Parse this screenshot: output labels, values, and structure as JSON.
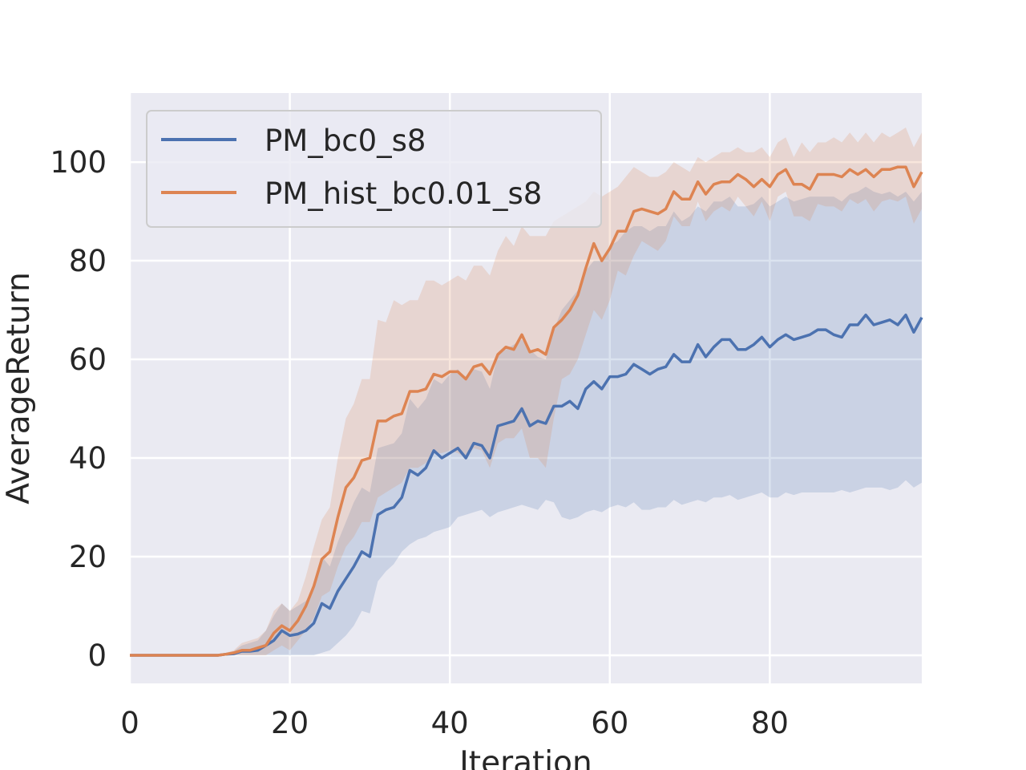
{
  "chart_data": {
    "type": "line",
    "title": "",
    "xlabel": "Iteration",
    "ylabel": "AverageReturn",
    "xlim": [
      0,
      99
    ],
    "ylim": [
      -5.7,
      114
    ],
    "xticks": [
      0,
      20,
      40,
      60,
      80
    ],
    "yticks": [
      0,
      20,
      40,
      60,
      80,
      100
    ],
    "grid": true,
    "legend_position": "top-left",
    "background_color": "#eaeaf2",
    "grid_color": "#ffffff",
    "series": [
      {
        "name": "PM_bc0_s8",
        "color": "#4c72b0",
        "x": [
          0,
          1,
          2,
          3,
          4,
          5,
          6,
          7,
          8,
          9,
          10,
          11,
          12,
          13,
          14,
          15,
          16,
          17,
          18,
          19,
          20,
          21,
          22,
          23,
          24,
          25,
          26,
          27,
          28,
          29,
          30,
          31,
          32,
          33,
          34,
          35,
          36,
          37,
          38,
          39,
          40,
          41,
          42,
          43,
          44,
          45,
          46,
          47,
          48,
          49,
          50,
          51,
          52,
          53,
          54,
          55,
          56,
          57,
          58,
          59,
          60,
          61,
          62,
          63,
          64,
          65,
          66,
          67,
          68,
          69,
          70,
          71,
          72,
          73,
          74,
          75,
          76,
          77,
          78,
          79,
          80,
          81,
          82,
          83,
          84,
          85,
          86,
          87,
          88,
          89,
          90,
          91,
          92,
          93,
          94,
          95,
          96,
          97,
          98,
          99
        ],
        "y": [
          0,
          0,
          0,
          0,
          0,
          0,
          0,
          0,
          0,
          0,
          0,
          0,
          0.2,
          0.3,
          0.8,
          0.8,
          1,
          2,
          3,
          5,
          4,
          4.3,
          5,
          6.5,
          10.5,
          9.5,
          13,
          15.5,
          18,
          21,
          20,
          28.5,
          29.5,
          30,
          32,
          37.5,
          36.5,
          38,
          41.5,
          40,
          41,
          42,
          40,
          43,
          42.5,
          40,
          46.5,
          47,
          47.5,
          50,
          46.5,
          47.5,
          47,
          50.5,
          50.5,
          51.5,
          50,
          54,
          55.5,
          54,
          56.5,
          56.5,
          57,
          59,
          58,
          57,
          58,
          58.5,
          61,
          59.5,
          59.5,
          63,
          60.5,
          62.5,
          64,
          64,
          62,
          62,
          63,
          64.5,
          62.5,
          64,
          65,
          64,
          64.5,
          65,
          66,
          66,
          65,
          64.5,
          67,
          67,
          69,
          67,
          67.5,
          68,
          67,
          69,
          65.5,
          68.5
        ],
        "lower": [
          0,
          0,
          0,
          0,
          0,
          0,
          0,
          0,
          0,
          0,
          0,
          0,
          0,
          0,
          0,
          0,
          0,
          0,
          0,
          0,
          0,
          0,
          0,
          0,
          0.5,
          1,
          2.5,
          4,
          6,
          9,
          8.5,
          15,
          17,
          18.5,
          21,
          22.5,
          23.5,
          24,
          25,
          25.5,
          26,
          28,
          28.5,
          29,
          29.5,
          28,
          29,
          29.5,
          30,
          30.5,
          30,
          29.5,
          31.5,
          31,
          28,
          27.5,
          28,
          29,
          29.5,
          29,
          30,
          30.5,
          30,
          31,
          29.5,
          29.5,
          30,
          30,
          31.5,
          30.5,
          31,
          31.5,
          31,
          32,
          32,
          32.5,
          31.5,
          32,
          32.5,
          33,
          32,
          32,
          33,
          32.5,
          33,
          33,
          33,
          33,
          33,
          33.5,
          33,
          33.5,
          34,
          34,
          34,
          33.5,
          34,
          35.5,
          34,
          35
        ],
        "upper": [
          0,
          0,
          0,
          0,
          0,
          0,
          0,
          0,
          0,
          0,
          0,
          0,
          0.5,
          0.8,
          2,
          2.5,
          3,
          5,
          8,
          10.5,
          9,
          10,
          11,
          14,
          20,
          18,
          23,
          27,
          31,
          34,
          33,
          42,
          42.5,
          43,
          45,
          52,
          50,
          52,
          56,
          55,
          57,
          58,
          56,
          58,
          57.5,
          54,
          61,
          62,
          63,
          64,
          62,
          60.5,
          60,
          66,
          70,
          72,
          74,
          78,
          80,
          80,
          83,
          84,
          86,
          87,
          87,
          86,
          87,
          87,
          90,
          88,
          89,
          91,
          90,
          92,
          92,
          93,
          91,
          91,
          91.5,
          93,
          91,
          92,
          93,
          92,
          92.5,
          93,
          93,
          93,
          93,
          92,
          93.5,
          94,
          95,
          94,
          93.5,
          94,
          93,
          94,
          92,
          94
        ]
      },
      {
        "name": "PM_hist_bc0.01_s8",
        "color": "#dd8452",
        "x": [
          0,
          1,
          2,
          3,
          4,
          5,
          6,
          7,
          8,
          9,
          10,
          11,
          12,
          13,
          14,
          15,
          16,
          17,
          18,
          19,
          20,
          21,
          22,
          23,
          24,
          25,
          26,
          27,
          28,
          29,
          30,
          31,
          32,
          33,
          34,
          35,
          36,
          37,
          38,
          39,
          40,
          41,
          42,
          43,
          44,
          45,
          46,
          47,
          48,
          49,
          50,
          51,
          52,
          53,
          54,
          55,
          56,
          57,
          58,
          59,
          60,
          61,
          62,
          63,
          64,
          65,
          66,
          67,
          68,
          69,
          70,
          71,
          72,
          73,
          74,
          75,
          76,
          77,
          78,
          79,
          80,
          81,
          82,
          83,
          84,
          85,
          86,
          87,
          88,
          89,
          90,
          91,
          92,
          93,
          94,
          95,
          96,
          97,
          98,
          99
        ],
        "y": [
          0,
          0,
          0,
          0,
          0,
          0,
          0,
          0,
          0,
          0,
          0,
          0,
          0.2,
          0.5,
          1,
          1,
          1.5,
          2,
          4.5,
          6,
          5,
          7,
          10,
          14,
          19.5,
          21,
          28,
          34,
          36,
          39.5,
          40,
          47.5,
          47.5,
          48.5,
          49,
          53.5,
          53.5,
          54,
          57,
          56.5,
          57.5,
          57.5,
          56,
          58.5,
          59,
          57,
          61,
          62.5,
          62,
          65,
          61.5,
          62,
          61,
          66.5,
          68,
          70,
          73,
          78.5,
          83.5,
          80,
          82.5,
          86,
          86,
          90,
          90.5,
          90,
          89.5,
          90.5,
          94,
          92.5,
          92.5,
          96,
          93.5,
          95.5,
          96,
          96,
          97.5,
          96.5,
          95,
          96.5,
          95,
          97.5,
          98.5,
          95.5,
          95.5,
          94.5,
          97.5,
          97.5,
          97.5,
          97,
          98.5,
          97.5,
          98.5,
          97,
          98.5,
          98.5,
          99,
          99,
          95,
          98
        ],
        "lower": [
          0,
          0,
          0,
          0,
          0,
          0,
          0,
          0,
          0,
          0,
          0,
          0,
          0,
          0,
          0,
          0,
          0,
          0,
          1,
          2,
          1,
          3,
          5,
          7.5,
          12,
          13,
          18,
          22,
          24,
          27,
          27,
          32,
          33,
          34,
          35,
          38,
          38,
          39,
          41,
          41,
          41.5,
          41,
          40,
          42,
          41.5,
          38,
          43,
          44,
          44,
          46,
          40,
          40,
          38,
          48,
          56,
          57,
          60,
          65,
          70,
          68,
          72,
          78,
          77,
          81,
          84,
          83,
          82,
          84,
          89,
          87,
          87,
          92,
          88,
          90,
          91,
          90,
          93,
          91,
          89,
          92,
          88,
          93,
          94,
          89,
          89,
          88,
          91.5,
          91,
          91,
          90,
          92.5,
          91.5,
          92.5,
          90,
          92,
          92.5,
          92,
          93,
          87.5,
          90.5
        ],
        "upper": [
          0,
          0,
          0,
          0,
          0,
          0,
          0,
          0,
          0,
          0,
          0,
          0,
          0.5,
          1,
          2.5,
          3,
          3.5,
          5,
          9,
          10.5,
          9,
          11,
          16,
          22,
          27.5,
          30,
          40,
          48,
          51,
          56,
          56,
          68,
          67.5,
          72,
          71,
          72,
          72,
          76,
          76,
          75,
          76,
          77,
          76,
          79,
          79,
          77,
          82,
          85,
          83,
          87,
          85,
          85,
          85,
          88,
          89,
          90,
          91,
          92,
          94,
          93,
          94,
          95,
          97,
          99,
          98,
          97,
          97,
          98,
          100,
          99,
          98,
          101,
          100,
          101,
          102,
          102,
          103,
          102,
          102,
          103,
          101,
          104,
          105,
          101,
          104,
          102,
          104,
          104,
          105,
          104,
          106,
          104,
          106,
          104,
          106,
          105,
          106,
          107,
          103,
          106
        ]
      }
    ]
  }
}
